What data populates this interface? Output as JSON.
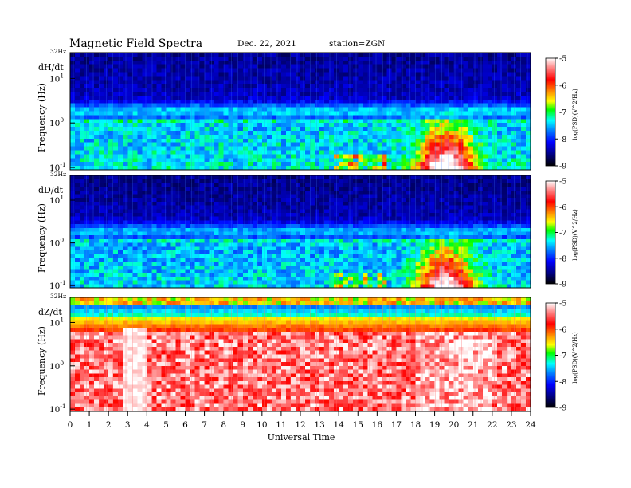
{
  "header": {
    "title": "Magnetic  Field  Spectra",
    "date": "Dec. 22, 2021",
    "station": "station=ZGN"
  },
  "chart_data": [
    {
      "type": "heatmap",
      "panel_label": "dH/dt",
      "ylabel": "Frequency  (Hz)",
      "top_label": "32Hz",
      "y_tick_labels": [
        "10^1",
        "10^0",
        "10^-1"
      ],
      "x_range_hours": [
        0,
        24
      ],
      "colorbar": {
        "ticks": [
          "-5",
          "-6",
          "-7",
          "-8",
          "-9"
        ],
        "label": "log(PSD)(V^2/Hz)",
        "range": [
          -9,
          -5
        ]
      }
    },
    {
      "type": "heatmap",
      "panel_label": "dD/dt",
      "ylabel": "Frequency  (Hz)",
      "top_label": "32Hz",
      "y_tick_labels": [
        "10^1",
        "10^0",
        "10^-1"
      ],
      "x_range_hours": [
        0,
        24
      ],
      "colorbar": {
        "ticks": [
          "-5",
          "-6",
          "-7",
          "-8",
          "-9"
        ],
        "label": "log(PSD)(V^2/Hz)",
        "range": [
          -9,
          -5
        ]
      }
    },
    {
      "type": "heatmap",
      "panel_label": "dZ/dt",
      "ylabel": "Frequency  (Hz)",
      "top_label": "32Hz",
      "y_tick_labels": [
        "10^1",
        "10^0",
        "10^-1"
      ],
      "x_range_hours": [
        0,
        24
      ],
      "colorbar": {
        "ticks": [
          "-5",
          "-6",
          "-7",
          "-8",
          "-9"
        ],
        "label": "log(PSD)(V^2/Hz)",
        "range": [
          -9,
          -5
        ]
      }
    }
  ],
  "xaxis": {
    "label": "Universal Time",
    "ticks": [
      "0",
      "1",
      "2",
      "3",
      "4",
      "5",
      "6",
      "7",
      "8",
      "9",
      "10",
      "11",
      "12",
      "13",
      "14",
      "15",
      "16",
      "17",
      "18",
      "19",
      "20",
      "21",
      "22",
      "23",
      "24"
    ]
  }
}
